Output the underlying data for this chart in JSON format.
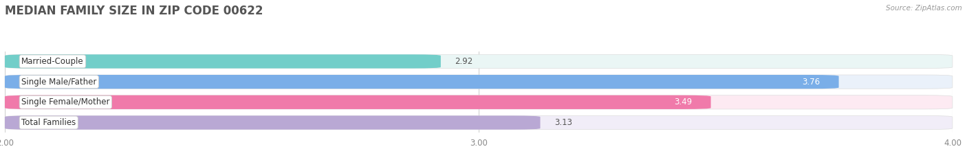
{
  "title": "MEDIAN FAMILY SIZE IN ZIP CODE 00622",
  "source": "Source: ZipAtlas.com",
  "categories": [
    "Married-Couple",
    "Single Male/Father",
    "Single Female/Mother",
    "Total Families"
  ],
  "values": [
    2.92,
    3.76,
    3.49,
    3.13
  ],
  "bar_colors": [
    "#72cec9",
    "#7aaee8",
    "#f07aaa",
    "#b9a8d4"
  ],
  "bar_bg_colors": [
    "#eaf6f5",
    "#eaf1fa",
    "#fdeaf2",
    "#f1edf8"
  ],
  "value_in_bar": [
    false,
    true,
    true,
    false
  ],
  "xlim": [
    2.0,
    4.0
  ],
  "xticks": [
    2.0,
    3.0,
    4.0
  ],
  "label_fontsize": 8.5,
  "value_fontsize": 8.5,
  "title_fontsize": 12,
  "background_color": "#ffffff",
  "bar_height": 0.68,
  "bar_gap": 0.32
}
